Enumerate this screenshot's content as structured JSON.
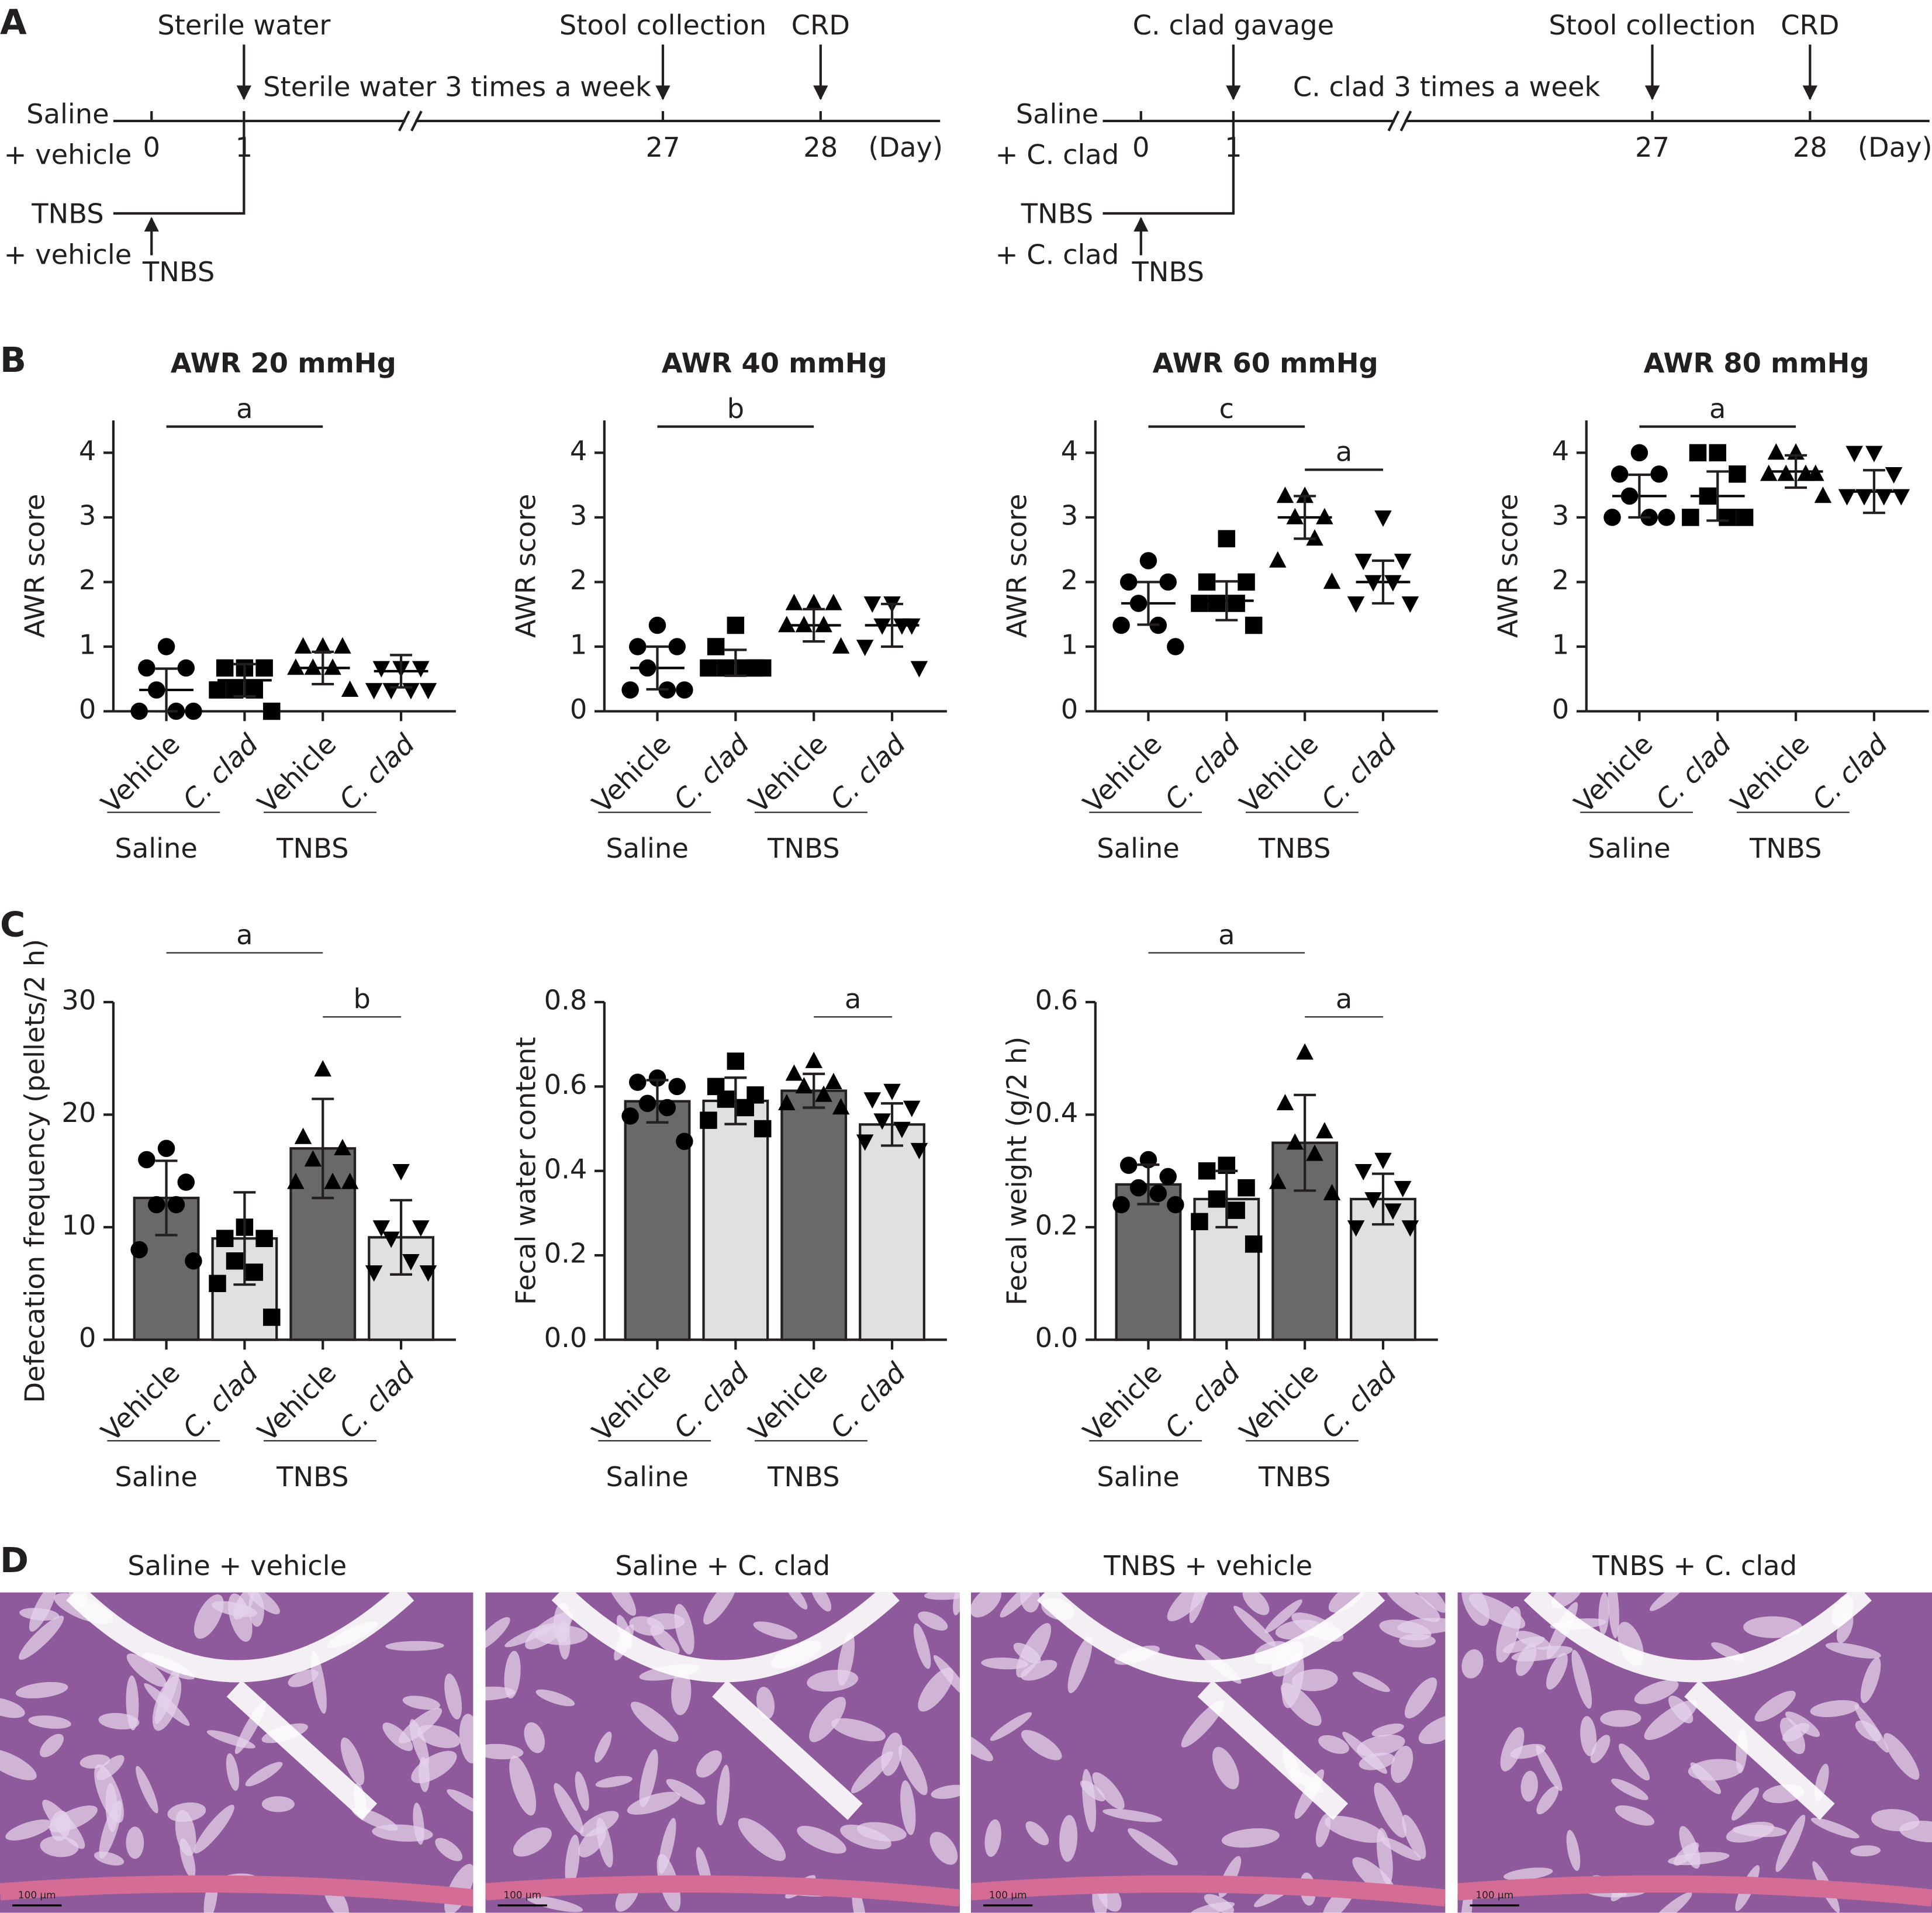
{
  "panel_labels": [
    "A",
    "B",
    "C",
    "D"
  ],
  "timeline": [
    {
      "top_labels": [
        "Sterile water",
        "Stool collection",
        "CRD"
      ],
      "treatment": "Sterile water 3 times a week",
      "days": [
        "0",
        "1",
        "27",
        "28"
      ],
      "unit": "(Day)",
      "groups": [
        [
          "Saline",
          "+ vehicle"
        ],
        [
          "TNBS",
          "+ vehicle"
        ]
      ],
      "induction": "TNBS"
    },
    {
      "top_labels": [
        "C. clad gavage",
        "Stool collection",
        "CRD"
      ],
      "treatment": "C. clad 3 times a week",
      "days": [
        "0",
        "1",
        "27",
        "28"
      ],
      "unit": "(Day)",
      "groups": [
        [
          "Saline",
          "+ C. clad"
        ],
        [
          "TNBS",
          "+ C. clad"
        ]
      ],
      "induction": "TNBS"
    }
  ],
  "chart_data": [
    {
      "type": "dotplot",
      "title": "AWR 20 mmHg",
      "y_label": "AWR score",
      "categories": [
        "Vehicle",
        "C. clad",
        "Vehicle",
        "C. clad"
      ],
      "groups": [
        "Saline",
        "TNBS"
      ],
      "markers": [
        "circle",
        "square",
        "triangle",
        "triangle-down"
      ],
      "color": "#000000",
      "points": [
        [
          1,
          0.67,
          0.67,
          0.33,
          0,
          0,
          0
        ],
        [
          0.67,
          0.67,
          0.67,
          0.33,
          0.33,
          0.33,
          0
        ],
        [
          1,
          1,
          1,
          0.67,
          0.67,
          0.67,
          0.33
        ],
        [
          0.67,
          0.67,
          0.67,
          0.33,
          0.33,
          0.33,
          0.33
        ]
      ],
      "values": [
        0.33,
        0.48,
        0.67,
        0.62
      ],
      "errors": [
        0.33,
        0.25,
        0.25,
        0.25
      ],
      "ylim": [
        0,
        4.5
      ],
      "yticks": [
        0,
        1,
        2,
        3,
        4
      ],
      "brackets": [
        {
          "label": "a",
          "from": 0,
          "to": 2
        }
      ]
    },
    {
      "type": "dotplot",
      "title": "AWR 40 mmHg",
      "y_label": "AWR score",
      "categories": [
        "Vehicle",
        "C. clad",
        "Vehicle",
        "C. clad"
      ],
      "groups": [
        "Saline",
        "TNBS"
      ],
      "markers": [
        "circle",
        "square",
        "triangle",
        "triangle-down"
      ],
      "color": "#000000",
      "points": [
        [
          1.33,
          1,
          1,
          0.67,
          0.33,
          0.33,
          0.33
        ],
        [
          1.33,
          1,
          0.67,
          0.67,
          0.67,
          0.67,
          0.67
        ],
        [
          1.67,
          1.67,
          1.67,
          1.33,
          1.33,
          1.33,
          1
        ],
        [
          1.67,
          1.67,
          1.33,
          1.33,
          1.33,
          1,
          0.67
        ]
      ],
      "values": [
        0.67,
        0.75,
        1.33,
        1.33
      ],
      "errors": [
        0.33,
        0.2,
        0.25,
        0.33
      ],
      "ylim": [
        0,
        4.5
      ],
      "yticks": [
        0,
        1,
        2,
        3,
        4
      ],
      "brackets": [
        {
          "label": "b",
          "from": 0,
          "to": 2
        }
      ]
    },
    {
      "type": "dotplot",
      "title": "AWR 60 mmHg",
      "y_label": "AWR score",
      "categories": [
        "Vehicle",
        "C. clad",
        "Vehicle",
        "C. clad"
      ],
      "groups": [
        "Saline",
        "TNBS"
      ],
      "markers": [
        "circle",
        "square",
        "triangle",
        "triangle-down"
      ],
      "color": "#000000",
      "points": [
        [
          2.33,
          2,
          2,
          1.67,
          1.33,
          1.33,
          1
        ],
        [
          2.67,
          2,
          2,
          1.67,
          1.67,
          1.67,
          1.33
        ],
        [
          3.33,
          3.33,
          3,
          3,
          2.67,
          2.33,
          2
        ],
        [
          3,
          2.33,
          2.33,
          2,
          2,
          1.67,
          1.67
        ]
      ],
      "values": [
        1.67,
        1.71,
        3,
        2
      ],
      "errors": [
        0.33,
        0.3,
        0.33,
        0.33
      ],
      "ylim": [
        0,
        4.5
      ],
      "yticks": [
        0,
        1,
        2,
        3,
        4
      ],
      "brackets": [
        {
          "label": "c",
          "from": 0,
          "to": 2
        },
        {
          "label": "a",
          "from": 2,
          "to": 3
        }
      ]
    },
    {
      "type": "dotplot",
      "title": "AWR 80 mmHg",
      "y_label": "AWR score",
      "categories": [
        "Vehicle",
        "C. clad",
        "Vehicle",
        "C. clad"
      ],
      "groups": [
        "Saline",
        "TNBS"
      ],
      "markers": [
        "circle",
        "square",
        "triangle",
        "triangle-down"
      ],
      "color": "#000000",
      "points": [
        [
          4,
          3.67,
          3.67,
          3.33,
          3,
          3,
          3
        ],
        [
          4,
          4,
          3.67,
          3.33,
          3,
          3,
          3
        ],
        [
          4,
          4,
          3.67,
          3.67,
          3.67,
          3.67,
          3.33
        ],
        [
          4,
          4,
          3.67,
          3.33,
          3.33,
          3.33,
          3.33
        ]
      ],
      "values": [
        3.33,
        3.33,
        3.71,
        3.4
      ],
      "errors": [
        0.33,
        0.38,
        0.25,
        0.33
      ],
      "ylim": [
        0,
        4.5
      ],
      "yticks": [
        0,
        1,
        2,
        3,
        4
      ],
      "brackets": [
        {
          "label": "a",
          "from": 0,
          "to": 2
        }
      ]
    },
    {
      "type": "bar",
      "y_label": "Defecation frequency (pellets/2 h)",
      "categories": [
        "Vehicle",
        "C. clad",
        "Vehicle",
        "C. clad"
      ],
      "groups": [
        "Saline",
        "TNBS"
      ],
      "markers": [
        "circle",
        "square",
        "triangle",
        "triangle-down"
      ],
      "colors": [
        "#696969",
        "#e0e0e0",
        "#696969",
        "#e0e0e0"
      ],
      "points": [
        [
          17,
          16,
          14,
          12,
          12,
          8,
          7
        ],
        [
          10,
          9,
          9,
          7,
          6,
          5,
          2
        ],
        [
          24,
          18,
          17,
          16,
          14,
          14,
          14
        ],
        [
          15,
          10,
          10,
          9,
          7,
          6,
          6
        ]
      ],
      "values": [
        12.6,
        9,
        17,
        9.1
      ],
      "errors": [
        3.3,
        4.1,
        4.4,
        3.3
      ],
      "ylim": [
        0,
        30
      ],
      "yticks": [
        0,
        10,
        20,
        30
      ],
      "brackets": [
        {
          "label": "a",
          "from": 0,
          "to": 2
        },
        {
          "label": "b",
          "from": 2,
          "to": 3
        }
      ]
    },
    {
      "type": "bar",
      "y_label": "Fecal water content",
      "categories": [
        "Vehicle",
        "C. clad",
        "Vehicle",
        "C. clad"
      ],
      "groups": [
        "Saline",
        "TNBS"
      ],
      "markers": [
        "circle",
        "square",
        "triangle",
        "triangle-down"
      ],
      "colors": [
        "#696969",
        "#e0e0e0",
        "#696969",
        "#e0e0e0"
      ],
      "points": [
        [
          0.62,
          0.61,
          0.6,
          0.56,
          0.55,
          0.53,
          0.47
        ],
        [
          0.66,
          0.6,
          0.58,
          0.57,
          0.55,
          0.52,
          0.5
        ],
        [
          0.66,
          0.63,
          0.61,
          0.6,
          0.58,
          0.56,
          0.55
        ],
        [
          0.59,
          0.57,
          0.55,
          0.52,
          0.5,
          0.47,
          0.45
        ]
      ],
      "values": [
        0.565,
        0.566,
        0.59,
        0.51
      ],
      "errors": [
        0.05,
        0.055,
        0.04,
        0.05
      ],
      "ylim": [
        0,
        0.8
      ],
      "yticks": [
        {
          "value": 0,
          "label": "0.0"
        },
        0.2,
        0.4,
        0.6,
        0.8
      ],
      "brackets": [
        {
          "label": "a",
          "from": 2,
          "to": 3
        }
      ]
    },
    {
      "type": "bar",
      "y_label": "Fecal weight (g/2 h)",
      "categories": [
        "Vehicle",
        "C. clad",
        "Vehicle",
        "C. clad"
      ],
      "groups": [
        "Saline",
        "TNBS"
      ],
      "markers": [
        "circle",
        "square",
        "triangle",
        "triangle-down"
      ],
      "colors": [
        "#696969",
        "#e0e0e0",
        "#696969",
        "#e0e0e0"
      ],
      "points": [
        [
          0.32,
          0.31,
          0.29,
          0.27,
          0.26,
          0.24,
          0.24
        ],
        [
          0.31,
          0.3,
          0.27,
          0.25,
          0.23,
          0.21,
          0.17
        ],
        [
          0.51,
          0.42,
          0.37,
          0.35,
          0.33,
          0.28,
          0.26
        ],
        [
          0.32,
          0.3,
          0.27,
          0.25,
          0.23,
          0.2,
          0.2
        ]
      ],
      "values": [
        0.276,
        0.25,
        0.35,
        0.25
      ],
      "errors": [
        0.035,
        0.05,
        0.085,
        0.045
      ],
      "ylim": [
        0,
        0.6
      ],
      "yticks": [
        {
          "value": 0,
          "label": "0.0"
        },
        0.2,
        0.4,
        0.6
      ],
      "brackets": [
        {
          "label": "a",
          "from": 0,
          "to": 2
        },
        {
          "label": "a",
          "from": 2,
          "to": 3
        }
      ]
    }
  ],
  "histology": [
    {
      "title": "Saline + vehicle",
      "scale": "100 μm"
    },
    {
      "title": "Saline + C. clad",
      "scale": "100 μm"
    },
    {
      "title": "TNBS + vehicle",
      "scale": "100 μm"
    },
    {
      "title": "TNBS + C. clad",
      "scale": "100 μm"
    }
  ]
}
